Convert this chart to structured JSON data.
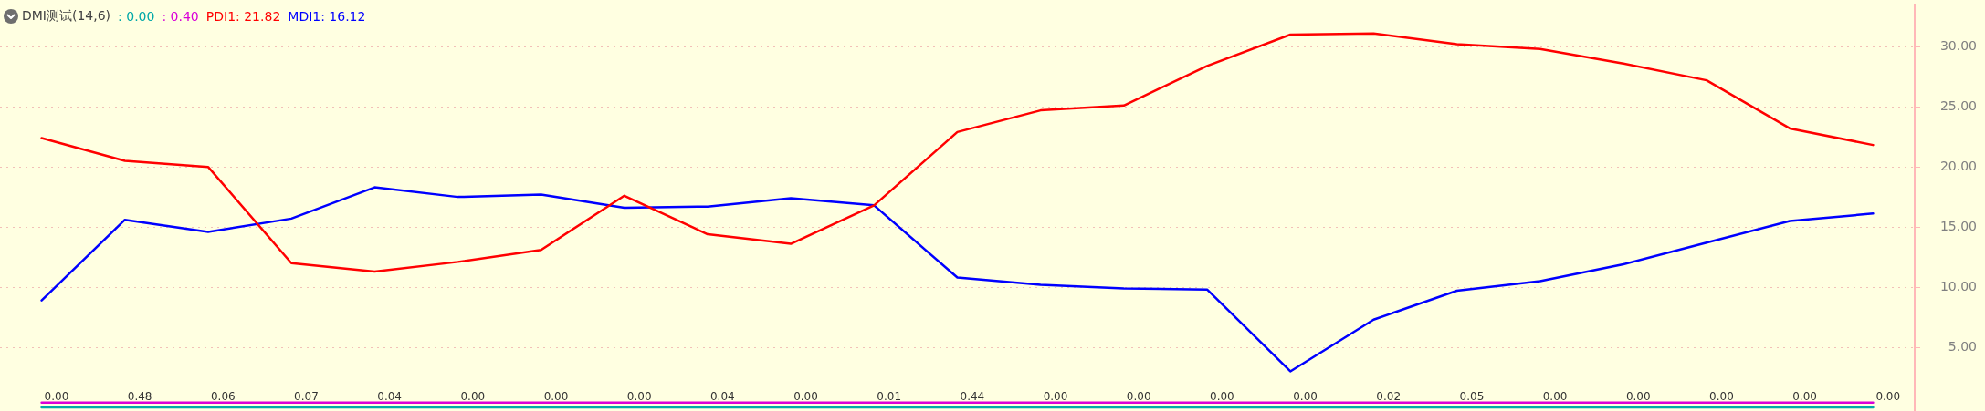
{
  "chart_data": {
    "type": "line",
    "title": "DMI测试(14,6)",
    "categories": [
      null,
      null,
      null,
      null,
      null,
      null,
      null,
      null,
      null,
      null,
      null,
      null,
      null,
      null,
      null,
      null,
      null,
      null,
      null,
      null,
      null,
      null,
      null
    ],
    "series": [
      {
        "name": ": 0.00",
        "color": "#00a8a8",
        "values": [
          0,
          0,
          0,
          0,
          0,
          0,
          0,
          0,
          0,
          0,
          0,
          0,
          0,
          0,
          0,
          0,
          0,
          0,
          0,
          0,
          0,
          0,
          0
        ]
      },
      {
        "name": ": 0.40",
        "color": "#d800d8",
        "values": [
          0.4,
          0.4,
          0.4,
          0.4,
          0.4,
          0.4,
          0.4,
          0.4,
          0.4,
          0.4,
          0.4,
          0.4,
          0.4,
          0.4,
          0.4,
          0.4,
          0.4,
          0.4,
          0.4,
          0.4,
          0.4,
          0.4,
          0.4
        ]
      },
      {
        "name": "PDI1: 21.82",
        "color": "#ff0000",
        "values": [
          22.4,
          20.5,
          20.0,
          12.0,
          11.3,
          12.1,
          13.1,
          17.6,
          14.4,
          13.6,
          16.8,
          22.9,
          24.7,
          25.1,
          28.4,
          31.0,
          31.1,
          30.2,
          29.8,
          28.6,
          27.2,
          23.2,
          21.82
        ]
      },
      {
        "name": "MDI1: 16.12",
        "color": "#0000ff",
        "values": [
          8.9,
          15.6,
          14.6,
          15.7,
          18.3,
          17.5,
          17.7,
          16.6,
          16.7,
          17.4,
          16.8,
          10.8,
          10.2,
          9.9,
          9.8,
          3.0,
          7.3,
          9.7,
          10.5,
          11.9,
          13.7,
          15.5,
          16.12
        ]
      }
    ],
    "annotations": [
      "0.00",
      "0.48",
      "0.06",
      "0.07",
      "0.04",
      "0.00",
      "0.00",
      "0.00",
      "0.04",
      "0.00",
      "0.01",
      "0.44",
      "0.00",
      "0.00",
      "0.00",
      "0.00",
      "0.02",
      "0.05",
      "0.00",
      "0.00",
      "0.00",
      "0.00",
      "0.00"
    ],
    "ylim": [
      -0.3,
      33.5
    ],
    "yticks": [
      {
        "value": 5,
        "label": "5.00"
      },
      {
        "value": 10,
        "label": "10.00"
      },
      {
        "value": 15,
        "label": "15.00"
      },
      {
        "value": 20,
        "label": "20.00"
      },
      {
        "value": 25,
        "label": "25.00"
      },
      {
        "value": 30,
        "label": "30.00"
      }
    ],
    "grid": "y",
    "tick_labels": "y",
    "marker": "none",
    "line_style": "solid"
  }
}
